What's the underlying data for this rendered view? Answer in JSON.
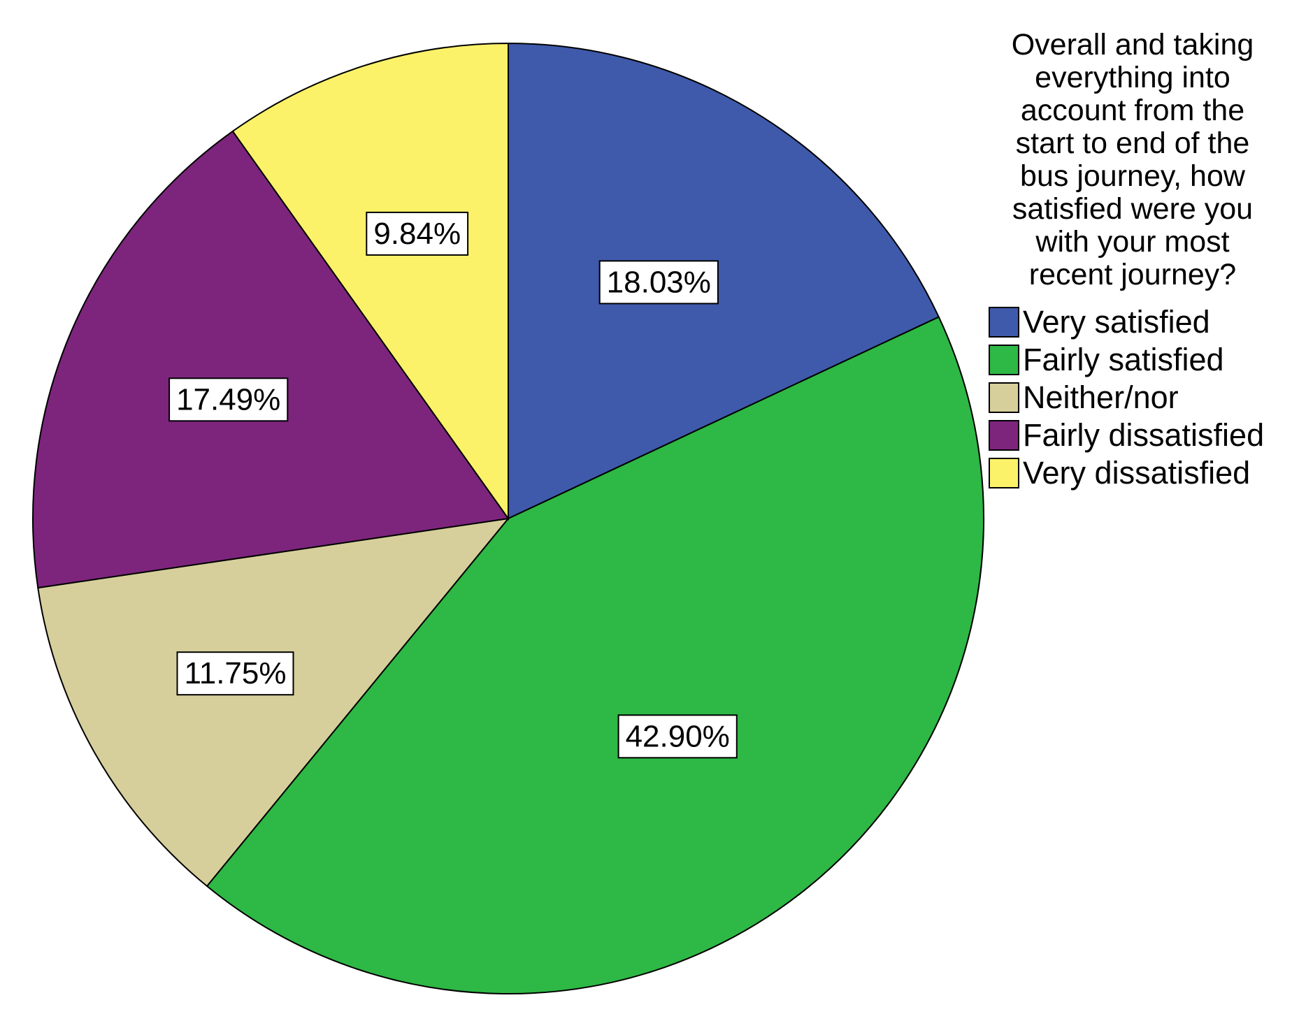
{
  "chart_data": {
    "type": "pie",
    "title": "",
    "legend": {
      "title_lines": [
        "Overall and taking",
        "everything into",
        "account from the",
        "start to end of the",
        "bus journey, how",
        "satisfied were you",
        "with your most",
        "recent journey?"
      ],
      "placement": "right"
    },
    "start_angle_deg": 0,
    "direction": "clockwise",
    "slices": [
      {
        "label": "Very satisfied",
        "value": 18.03,
        "value_label": "18.03%",
        "color": "#3F5AAB"
      },
      {
        "label": "Fairly satisfied",
        "value": 42.9,
        "value_label": "42.90%",
        "color": "#2EB845"
      },
      {
        "label": "Neither/nor",
        "value": 11.75,
        "value_label": "11.75%",
        "color": "#D6CF9B"
      },
      {
        "label": "Fairly dissatisfied",
        "value": 17.49,
        "value_label": "17.49%",
        "color": "#7D257D"
      },
      {
        "label": "Very dissatisfied",
        "value": 9.84,
        "value_label": "9.84%",
        "color": "#FBF26A"
      }
    ]
  }
}
